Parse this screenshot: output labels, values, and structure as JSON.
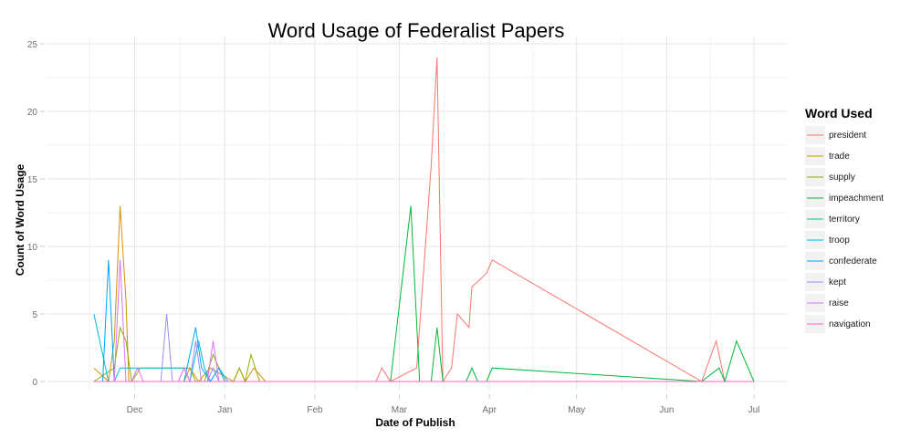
{
  "chart_data": {
    "type": "line",
    "title": "Word Usage of Federalist Papers",
    "xlabel": "Date of Publish",
    "ylabel": "Count of Word Usage",
    "x_unit": "date",
    "x_range": [
      "1787-11-12",
      "1788-07-01"
    ],
    "ylim": [
      0,
      25
    ],
    "y_ticks": [
      0,
      5,
      10,
      15,
      20,
      25
    ],
    "x_ticks": [
      {
        "date": "1787-12-01",
        "label": "Dec"
      },
      {
        "date": "1788-01-01",
        "label": "Jan"
      },
      {
        "date": "1788-02-01",
        "label": "Feb"
      },
      {
        "date": "1788-03-01",
        "label": "Mar"
      },
      {
        "date": "1788-04-01",
        "label": "Apr"
      },
      {
        "date": "1788-05-01",
        "label": "May"
      },
      {
        "date": "1788-06-01",
        "label": "Jun"
      },
      {
        "date": "1788-07-01",
        "label": "Jul"
      }
    ],
    "grid": true,
    "legend_position": "right",
    "legend_title": "Word Used",
    "series": [
      {
        "name": "president",
        "color": "#F8766D",
        "points": [
          [
            "1787-11-17",
            0
          ],
          [
            "1788-02-22",
            0
          ],
          [
            "1788-02-24",
            1
          ],
          [
            "1788-02-27",
            0
          ],
          [
            "1788-03-07",
            1
          ],
          [
            "1788-03-12",
            16
          ],
          [
            "1788-03-14",
            24
          ],
          [
            "1788-03-16",
            0
          ],
          [
            "1788-03-19",
            1
          ],
          [
            "1788-03-21",
            5
          ],
          [
            "1788-03-25",
            4
          ],
          [
            "1788-03-26",
            7
          ],
          [
            "1788-03-31",
            8
          ],
          [
            "1788-04-02",
            9
          ],
          [
            "1788-06-13",
            0
          ],
          [
            "1788-06-18",
            3
          ],
          [
            "1788-06-21",
            0
          ],
          [
            "1788-07-01",
            0
          ]
        ]
      },
      {
        "name": "trade",
        "color": "#D39200",
        "points": [
          [
            "1787-11-17",
            1
          ],
          [
            "1787-11-22",
            0
          ],
          [
            "1787-11-24",
            3
          ],
          [
            "1787-11-26",
            13
          ],
          [
            "1787-11-28",
            6
          ],
          [
            "1787-11-29",
            0
          ],
          [
            "1787-12-01",
            0
          ],
          [
            "1787-12-18",
            0
          ],
          [
            "1787-12-20",
            1
          ],
          [
            "1787-12-23",
            0
          ],
          [
            "1787-12-27",
            1
          ],
          [
            "1788-01-04",
            0
          ],
          [
            "1788-01-06",
            1
          ],
          [
            "1788-01-08",
            0
          ],
          [
            "1788-01-11",
            1
          ],
          [
            "1788-01-15",
            0
          ],
          [
            "1788-07-01",
            0
          ]
        ]
      },
      {
        "name": "supply",
        "color": "#93AA00",
        "points": [
          [
            "1787-11-17",
            0
          ],
          [
            "1787-11-24",
            1
          ],
          [
            "1787-11-26",
            4
          ],
          [
            "1787-11-28",
            3
          ],
          [
            "1787-11-30",
            0
          ],
          [
            "1787-12-03",
            1
          ],
          [
            "1787-12-15",
            1
          ],
          [
            "1787-12-20",
            1
          ],
          [
            "1787-12-22",
            0
          ],
          [
            "1787-12-25",
            0
          ],
          [
            "1787-12-28",
            2
          ],
          [
            "1788-01-01",
            0
          ],
          [
            "1788-01-04",
            0
          ],
          [
            "1788-01-06",
            1
          ],
          [
            "1788-01-08",
            0
          ],
          [
            "1788-01-10",
            2
          ],
          [
            "1788-01-13",
            0
          ],
          [
            "1788-07-01",
            0
          ]
        ]
      },
      {
        "name": "impeachment",
        "color": "#00BA38",
        "points": [
          [
            "1787-11-17",
            0
          ],
          [
            "1788-02-27",
            0
          ],
          [
            "1788-03-05",
            13
          ],
          [
            "1788-03-08",
            0
          ],
          [
            "1788-03-12",
            0
          ],
          [
            "1788-03-14",
            4
          ],
          [
            "1788-03-16",
            0
          ],
          [
            "1788-03-24",
            0
          ],
          [
            "1788-03-26",
            1
          ],
          [
            "1788-03-28",
            0
          ],
          [
            "1788-03-31",
            0
          ],
          [
            "1788-04-02",
            1
          ],
          [
            "1788-06-13",
            0
          ],
          [
            "1788-06-19",
            1
          ],
          [
            "1788-06-21",
            0
          ],
          [
            "1788-06-25",
            3
          ],
          [
            "1788-07-01",
            0
          ]
        ]
      },
      {
        "name": "territory",
        "color": "#00C19F",
        "points": [
          [
            "1787-11-17",
            0
          ],
          [
            "1788-07-01",
            0
          ]
        ]
      },
      {
        "name": "troop",
        "color": "#00B9E3",
        "points": [
          [
            "1787-11-17",
            5
          ],
          [
            "1787-11-21",
            1
          ],
          [
            "1787-11-22",
            0
          ],
          [
            "1787-11-24",
            0
          ],
          [
            "1787-11-26",
            1
          ],
          [
            "1787-12-18",
            1
          ],
          [
            "1787-12-20",
            0
          ],
          [
            "1787-12-23",
            3
          ],
          [
            "1787-12-25",
            1
          ],
          [
            "1787-12-27",
            0
          ],
          [
            "1787-12-30",
            1
          ],
          [
            "1788-01-01",
            0
          ],
          [
            "1788-07-01",
            0
          ]
        ]
      },
      {
        "name": "confederate",
        "color": "#00A5FF",
        "points": [
          [
            "1787-11-17",
            0
          ],
          [
            "1787-11-20",
            0
          ],
          [
            "1787-11-22",
            9
          ],
          [
            "1787-11-24",
            0
          ],
          [
            "1787-11-26",
            0
          ],
          [
            "1787-12-18",
            0
          ],
          [
            "1787-12-20",
            2
          ],
          [
            "1787-12-22",
            4
          ],
          [
            "1787-12-24",
            1
          ],
          [
            "1787-12-27",
            0
          ],
          [
            "1787-12-30",
            1
          ],
          [
            "1788-01-02",
            0
          ],
          [
            "1788-07-01",
            0
          ]
        ]
      },
      {
        "name": "kept",
        "color": "#9590FF",
        "points": [
          [
            "1787-11-17",
            0
          ],
          [
            "1787-12-10",
            0
          ],
          [
            "1787-12-12",
            5
          ],
          [
            "1787-12-14",
            0
          ],
          [
            "1787-12-20",
            0
          ],
          [
            "1787-12-22",
            3
          ],
          [
            "1787-12-24",
            0
          ],
          [
            "1787-12-26",
            0
          ],
          [
            "1787-12-28",
            1
          ],
          [
            "1787-12-30",
            0
          ],
          [
            "1788-07-01",
            0
          ]
        ]
      },
      {
        "name": "raise",
        "color": "#DB72FB",
        "points": [
          [
            "1787-11-17",
            0
          ],
          [
            "1787-11-24",
            0
          ],
          [
            "1787-11-26",
            9
          ],
          [
            "1787-11-28",
            0
          ],
          [
            "1787-11-30",
            0
          ],
          [
            "1787-12-02",
            1
          ],
          [
            "1787-12-04",
            0
          ],
          [
            "1787-12-16",
            0
          ],
          [
            "1787-12-18",
            1
          ],
          [
            "1787-12-20",
            0
          ],
          [
            "1787-12-26",
            0
          ],
          [
            "1787-12-28",
            3
          ],
          [
            "1787-12-30",
            0
          ],
          [
            "1788-07-01",
            0
          ]
        ]
      },
      {
        "name": "navigation",
        "color": "#FF61C3",
        "points": [
          [
            "1787-11-17",
            0
          ],
          [
            "1788-07-01",
            0
          ]
        ]
      }
    ]
  }
}
